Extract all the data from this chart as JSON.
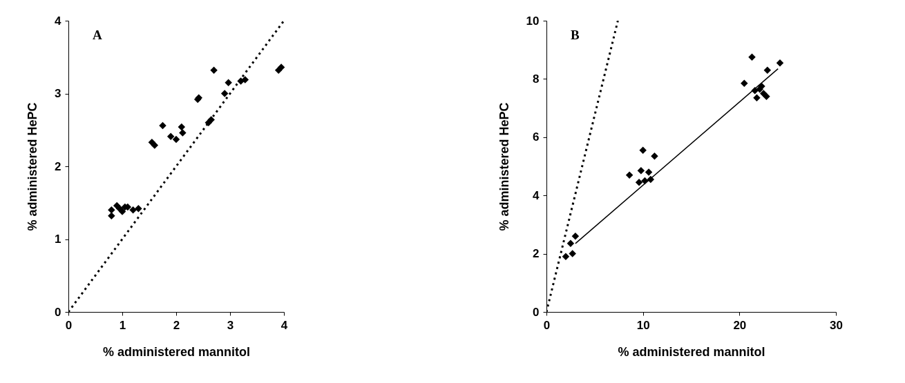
{
  "chart_data": [
    {
      "type": "scatter",
      "xlabel": "% administered mannitol",
      "ylabel": "% administered HePC",
      "xlim": [
        0,
        4
      ],
      "ylim": [
        0,
        4
      ],
      "xticks": [
        0,
        1,
        2,
        3,
        4
      ],
      "yticks": [
        0,
        1,
        2,
        3,
        4
      ],
      "annotations": [
        "A"
      ],
      "series": [
        {
          "type": "line",
          "color": "#000000",
          "line_style": "dotted",
          "marker": "none",
          "x": [
            0,
            4
          ],
          "values": [
            0,
            4
          ]
        },
        {
          "type": "scatter",
          "color": "#000000",
          "marker": "diamond",
          "x": [
            0.8,
            0.8,
            0.9,
            0.95,
            1.0,
            1.05,
            1.1,
            1.2,
            1.3,
            1.55,
            1.6,
            1.75,
            1.9,
            2.0,
            2.1,
            2.12,
            2.4,
            2.42,
            2.6,
            2.65,
            2.7,
            2.9,
            2.97,
            3.2,
            3.28,
            3.9,
            3.95
          ],
          "values": [
            1.4,
            1.32,
            1.46,
            1.42,
            1.38,
            1.44,
            1.44,
            1.4,
            1.42,
            2.33,
            2.29,
            2.56,
            2.41,
            2.37,
            2.54,
            2.46,
            2.92,
            2.94,
            2.6,
            2.64,
            3.32,
            3.0,
            3.15,
            3.17,
            3.19,
            3.32,
            3.36
          ]
        }
      ]
    },
    {
      "type": "scatter",
      "xlabel": "% administered mannitol",
      "ylabel": "% administered HePC",
      "xlim": [
        0,
        30
      ],
      "ylim": [
        0,
        10
      ],
      "xticks": [
        0,
        10,
        20,
        30
      ],
      "yticks": [
        0,
        2,
        4,
        6,
        8,
        10
      ],
      "annotations": [
        "B"
      ],
      "series": [
        {
          "type": "line",
          "color": "#000000",
          "line_style": "dotted",
          "marker": "none",
          "x": [
            0,
            7.4
          ],
          "values": [
            0,
            10
          ]
        },
        {
          "type": "line",
          "color": "#000000",
          "line_style": "solid",
          "marker": "none",
          "x": [
            3,
            24
          ],
          "values": [
            2.35,
            8.35
          ]
        },
        {
          "type": "scatter",
          "color": "#000000",
          "marker": "diamond",
          "x": [
            2.0,
            2.7,
            2.5,
            3,
            8.6,
            9.6,
            9.8,
            10,
            10.2,
            10.6,
            10.8,
            11.2,
            20.5,
            21.3,
            21.6,
            21.8,
            22.1,
            22.3,
            22.5,
            22.8,
            22.9,
            24.2
          ],
          "values": [
            1.9,
            2.0,
            2.35,
            2.6,
            4.7,
            4.45,
            4.85,
            5.55,
            4.5,
            4.8,
            4.55,
            5.35,
            7.85,
            8.75,
            7.6,
            7.35,
            7.65,
            7.75,
            7.5,
            7.4,
            8.3,
            8.55
          ]
        }
      ]
    }
  ]
}
